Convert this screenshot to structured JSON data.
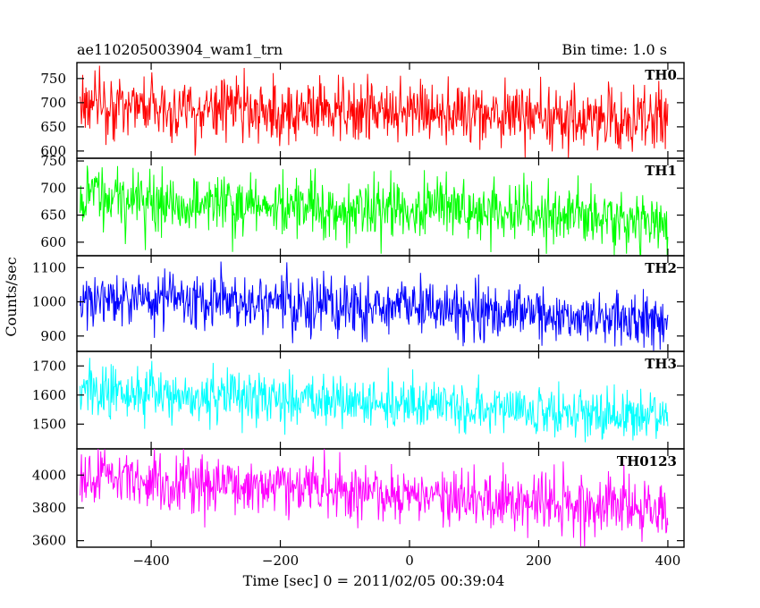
{
  "header": {
    "title_left": "ae110205003904_wam1_trn",
    "title_right": "Bin time: 1.0 s"
  },
  "chart_data": {
    "type": "line",
    "title": "ae110205003904_wam1_trn",
    "subtitle": "Bin time: 1.0 s",
    "xlabel": "Time [sec] 0 = 2011/02/05 00:39:04",
    "ylabel": "Counts/sec",
    "xlim": [
      -515,
      425
    ],
    "x_range": [
      -510,
      400
    ],
    "x_ticks": [
      -400,
      -200,
      0,
      200,
      400
    ],
    "x_tick_labels": [
      "−400",
      "−200",
      "0",
      "200",
      "400"
    ],
    "grid": false,
    "panels": [
      {
        "name": "TH0",
        "color": "#ff0000",
        "ylim": [
          585,
          783
        ],
        "yticks": [
          600,
          650,
          700,
          750
        ],
        "trend_start": 695,
        "trend_end": 665,
        "noise_sd": 32,
        "observed_min": 585,
        "observed_max": 783
      },
      {
        "name": "TH1",
        "color": "#00ff00",
        "ylim": [
          575,
          755
        ],
        "yticks": [
          600,
          650,
          700,
          750
        ],
        "trend_start": 680,
        "trend_end": 643,
        "noise_sd": 28,
        "observed_min": 576,
        "observed_max": 755
      },
      {
        "name": "TH2",
        "color": "#0000ff",
        "ylim": [
          855,
          1135
        ],
        "yticks": [
          900,
          1000,
          1100
        ],
        "trend_start": 1015,
        "trend_end": 950,
        "noise_sd": 40,
        "observed_min": 857,
        "observed_max": 1135
      },
      {
        "name": "TH3",
        "color": "#00ffff",
        "ylim": [
          1415,
          1750
        ],
        "yticks": [
          1500,
          1600,
          1700
        ],
        "trend_start": 1620,
        "trend_end": 1520,
        "noise_sd": 45,
        "observed_min": 1418,
        "observed_max": 1750
      },
      {
        "name": "TH0123",
        "color": "#ff00ff",
        "ylim": [
          3560,
          4160
        ],
        "yticks": [
          3600,
          3800,
          4000
        ],
        "trend_start": 3980,
        "trend_end": 3790,
        "noise_sd": 85,
        "observed_min": 3562,
        "observed_max": 4160
      }
    ]
  }
}
